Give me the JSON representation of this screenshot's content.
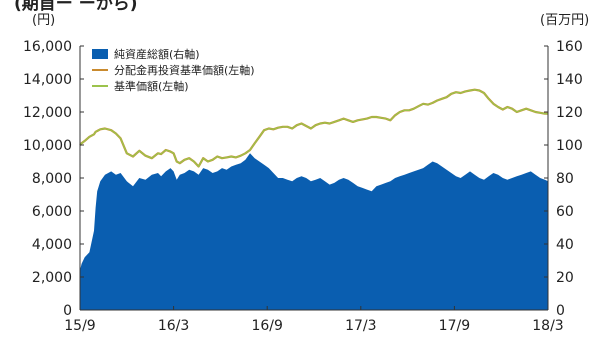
{
  "chart_data": {
    "type": "line",
    "header_partial": "(期首ー ーから)",
    "left_unit": "(円)",
    "right_unit": "(百万円)",
    "x_ticks": [
      "15/9",
      "16/3",
      "16/9",
      "17/3",
      "17/9",
      "18/3"
    ],
    "ylim_left": [
      0,
      16000
    ],
    "ylim_right": [
      0,
      160
    ],
    "y_ticks_left": [
      0,
      2000,
      4000,
      6000,
      8000,
      10000,
      12000,
      14000,
      16000
    ],
    "y_ticks_left_labels": [
      "0",
      "2,000",
      "4,000",
      "6,000",
      "8,000",
      "10,000",
      "12,000",
      "14,000",
      "16,000"
    ],
    "y_ticks_right": [
      0,
      20,
      40,
      60,
      80,
      100,
      120,
      140,
      160
    ],
    "y_ticks_right_labels": [
      "0",
      "20",
      "40",
      "60",
      "80",
      "100",
      "120",
      "140",
      "160"
    ],
    "legend": [
      {
        "label": "純資産総額(右軸)",
        "color": "#0a5eb0",
        "kind": "area"
      },
      {
        "label": "分配金再投資基準価額(左軸)",
        "color": "#c98a2e",
        "kind": "line"
      },
      {
        "label": "基準価額(左軸)",
        "color": "#9cc34c",
        "kind": "line"
      }
    ],
    "x": [
      0,
      0.1,
      0.3,
      0.6,
      0.9,
      1.0,
      1.1,
      1.3,
      1.6,
      2.0,
      2.3,
      2.6,
      3.0,
      3.4,
      3.8,
      4.2,
      4.6,
      5.0,
      5.2,
      5.5,
      5.8,
      6.0,
      6.2,
      6.4,
      6.7,
      7.0,
      7.3,
      7.6,
      7.9,
      8.2,
      8.5,
      8.8,
      9.1,
      9.4,
      9.7,
      10.0,
      10.3,
      10.6,
      10.9,
      11.2,
      11.5,
      11.8,
      12.1,
      12.4,
      12.7,
      13.0,
      13.3,
      13.6,
      13.9,
      14.2,
      14.5,
      14.8,
      15.1,
      15.4,
      15.7,
      16.0,
      16.3,
      16.6,
      16.9,
      17.2,
      17.5,
      17.8,
      18.1,
      18.4,
      18.7,
      19.0,
      19.3,
      19.6,
      19.9,
      20.2,
      20.5,
      20.8,
      21.1,
      21.4,
      21.7,
      22.0,
      22.3,
      22.6,
      22.9,
      23.2,
      23.5,
      23.8,
      24.1,
      24.4,
      24.7,
      25.0,
      25.3,
      25.6,
      25.9,
      26.2,
      26.5,
      26.8,
      27.1,
      27.4,
      27.7,
      28.0,
      28.3,
      28.6,
      28.9,
      29.2,
      29.5,
      29.8,
      30.0
    ],
    "series": [
      {
        "name": "純資産総額(右軸)",
        "axis": "right",
        "values": [
          24,
          28,
          32,
          35,
          48,
          62,
          72,
          78,
          82,
          84,
          82,
          83,
          78,
          75,
          80,
          79,
          82,
          83,
          81,
          84,
          86,
          84,
          79,
          82,
          83,
          85,
          84,
          82,
          86,
          85,
          83,
          84,
          86,
          85,
          87,
          88,
          89,
          91,
          95,
          92,
          90,
          88,
          86,
          83,
          80,
          80,
          79,
          78,
          80,
          81,
          80,
          78,
          79,
          80,
          78,
          76,
          77,
          79,
          80,
          79,
          77,
          75,
          74,
          73,
          72,
          75,
          76,
          77,
          78,
          80,
          81,
          82,
          83,
          84,
          85,
          86,
          88,
          90,
          89,
          87,
          85,
          83,
          81,
          80,
          82,
          84,
          82,
          80,
          79,
          81,
          83,
          82,
          80,
          79,
          80,
          81,
          82,
          83,
          84,
          82,
          80,
          79,
          78
        ]
      },
      {
        "name": "分配金再投資基準価額(左軸)",
        "axis": "left",
        "values": [
          10000,
          10100,
          10250,
          10500,
          10650,
          10800,
          10850,
          10950,
          11000,
          10900,
          10700,
          10400,
          9500,
          9300,
          9650,
          9350,
          9200,
          9500,
          9450,
          9700,
          9600,
          9500,
          9000,
          8900,
          9100,
          9200,
          9000,
          8700,
          9200,
          9000,
          9100,
          9300,
          9200,
          9250,
          9300,
          9250,
          9350,
          9500,
          9700,
          10100,
          10500,
          10900,
          11000,
          10950,
          11050,
          11100,
          11100,
          11000,
          11200,
          11300,
          11150,
          11000,
          11200,
          11300,
          11350,
          11300,
          11400,
          11500,
          11600,
          11500,
          11400,
          11500,
          11550,
          11600,
          11700,
          11700,
          11650,
          11600,
          11500,
          11800,
          12000,
          12100,
          12100,
          12200,
          12350,
          12500,
          12450,
          12550,
          12700,
          12800,
          12900,
          13100,
          13200,
          13150,
          13250,
          13300,
          13350,
          13300,
          13150,
          12800,
          12500,
          12300,
          12150,
          12300,
          12200,
          12000,
          12100,
          12200,
          12100,
          12000,
          11950,
          11900,
          11900
        ]
      },
      {
        "name": "基準価額(左軸)",
        "axis": "left",
        "values": [
          10000,
          10100,
          10250,
          10500,
          10650,
          10800,
          10850,
          10950,
          11000,
          10900,
          10700,
          10400,
          9500,
          9300,
          9650,
          9350,
          9200,
          9500,
          9450,
          9700,
          9600,
          9500,
          9000,
          8900,
          9100,
          9200,
          9000,
          8700,
          9200,
          9000,
          9100,
          9300,
          9200,
          9250,
          9300,
          9250,
          9350,
          9500,
          9700,
          10100,
          10500,
          10900,
          11000,
          10950,
          11050,
          11100,
          11100,
          11000,
          11200,
          11300,
          11150,
          11000,
          11200,
          11300,
          11350,
          11300,
          11400,
          11500,
          11600,
          11500,
          11400,
          11500,
          11550,
          11600,
          11700,
          11700,
          11650,
          11600,
          11500,
          11800,
          12000,
          12100,
          12100,
          12200,
          12350,
          12500,
          12450,
          12550,
          12700,
          12800,
          12900,
          13100,
          13200,
          13150,
          13250,
          13300,
          13350,
          13300,
          13150,
          12800,
          12500,
          12300,
          12150,
          12300,
          12200,
          12000,
          12100,
          12200,
          12100,
          12000,
          11950,
          11900,
          11900
        ]
      }
    ],
    "grid": false,
    "legend_position": "top-left"
  }
}
